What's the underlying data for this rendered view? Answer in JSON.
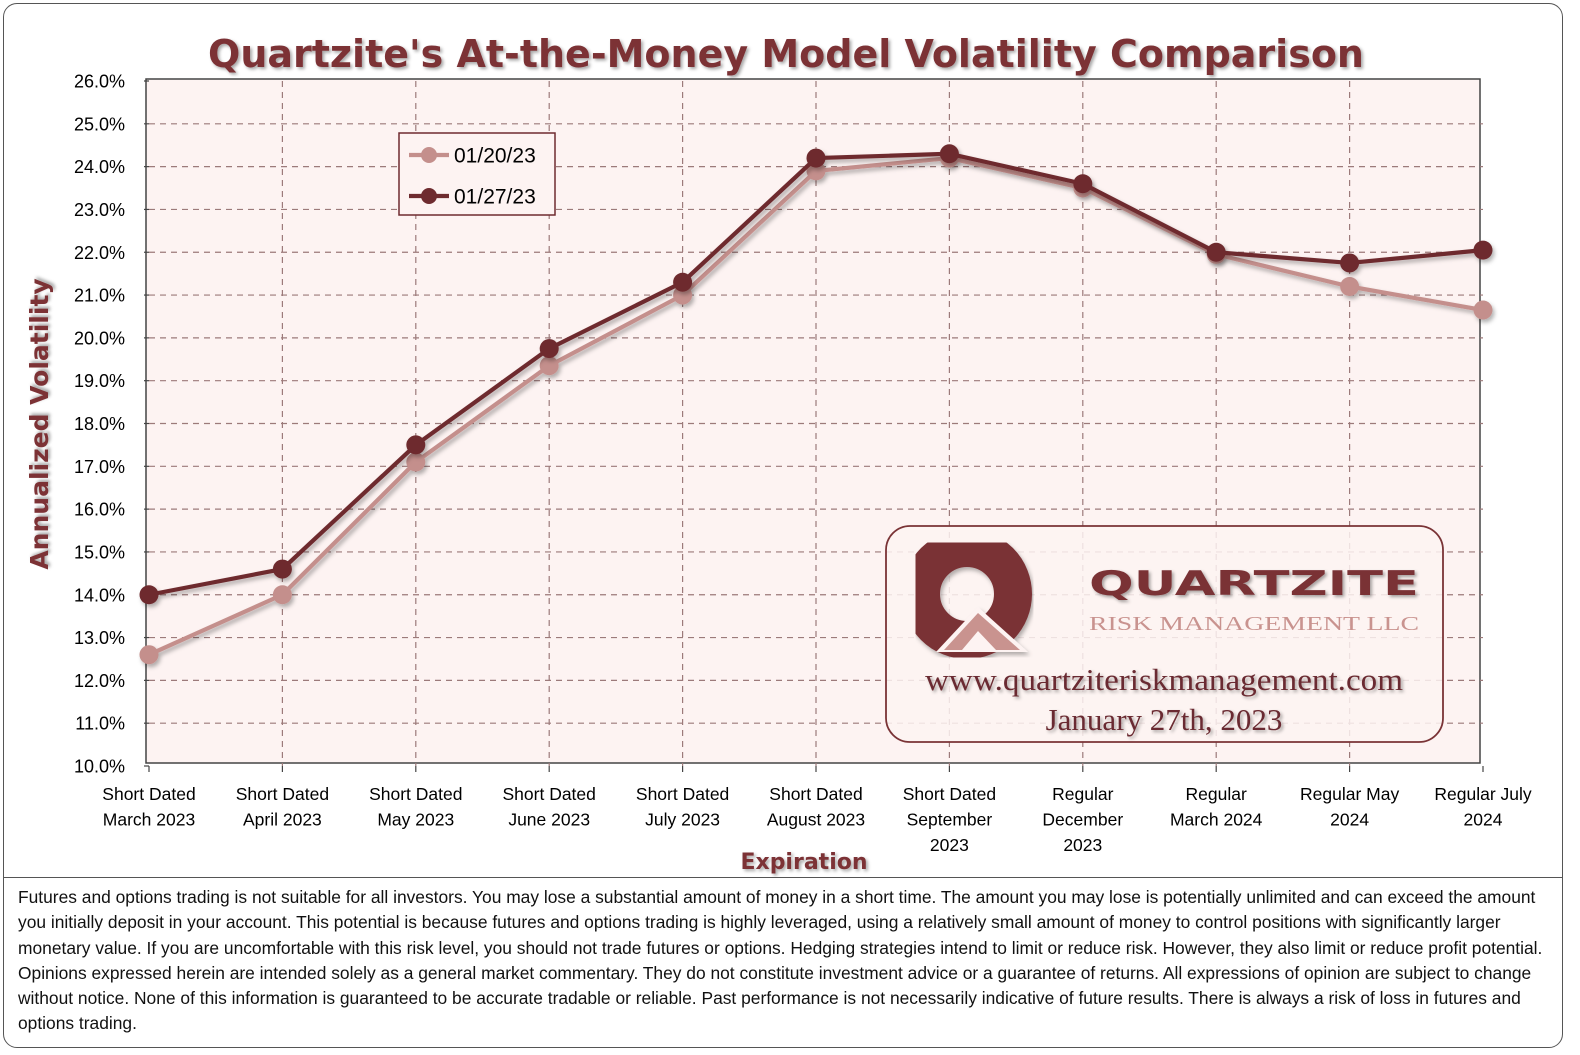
{
  "chart_data": {
    "type": "line",
    "title": "Quartzite's At-the-Money Model Volatility Comparison",
    "xlabel": "Expiration",
    "ylabel": "Annualized Volatility",
    "ylim": [
      10.0,
      26.0
    ],
    "y_tick_step": 1.0,
    "y_tick_format": "percent_1dp",
    "grid": true,
    "legend_position": "top-left",
    "categories": [
      "Short Dated March 2023",
      "Short Dated April 2023",
      "Short Dated May 2023",
      "Short Dated June 2023",
      "Short Dated July 2023",
      "Short Dated August 2023",
      "Short Dated September 2023",
      "Regular December 2023",
      "Regular March 2024",
      "Regular May 2024",
      "Regular July 2024"
    ],
    "category_lines": [
      [
        "Short Dated",
        "March 2023"
      ],
      [
        "Short Dated",
        "April 2023"
      ],
      [
        "Short Dated",
        "May 2023"
      ],
      [
        "Short Dated",
        "June 2023"
      ],
      [
        "Short Dated",
        "July 2023"
      ],
      [
        "Short Dated",
        "August 2023"
      ],
      [
        "Short Dated",
        "September",
        "2023"
      ],
      [
        "Regular",
        "December",
        "2023"
      ],
      [
        "Regular",
        "March 2024"
      ],
      [
        "Regular May",
        "2024"
      ],
      [
        "Regular July",
        "2024"
      ]
    ],
    "series": [
      {
        "name": "01/20/23",
        "color": "#c48f8c",
        "values": [
          12.6,
          14.0,
          17.1,
          19.35,
          21.0,
          23.9,
          24.2,
          23.5,
          21.95,
          21.2,
          20.65
        ]
      },
      {
        "name": "01/27/23",
        "color": "#6e2b2f",
        "values": [
          14.0,
          14.6,
          17.5,
          19.75,
          21.3,
          24.2,
          24.3,
          23.6,
          22.0,
          21.75,
          22.05
        ]
      }
    ]
  },
  "logo": {
    "name": "QUARTZITE",
    "subtitle": "RISK MANAGEMENT LLC",
    "url": "www.quartziteriskmanagement.com",
    "date": "January 27th, 2023"
  },
  "colors": {
    "title": "#7b3035",
    "plot_background": "#fdf3f2",
    "grid": "#9c7a7a",
    "logo_dark": "#7a3336",
    "logo_light": "#c9938f"
  },
  "disclaimer": "Futures and options trading is not suitable for all investors. You may lose a substantial amount of money in a short time. The amount you may lose is potentially unlimited and can exceed the amount you initially deposit in your account. This potential is because futures and options trading is highly leveraged, using a relatively small amount of money to control positions with significantly larger monetary value. If you are uncomfortable with this risk level, you should not trade futures or options. Hedging strategies intend to limit or reduce risk. However, they also limit or reduce profit potential. Opinions expressed herein are intended solely as a general market commentary. They do not constitute investment advice or a guarantee of returns. All expressions of opinion are subject to change without notice. None of this information is guaranteed to be accurate tradable or reliable. Past performance is not necessarily indicative of future results. There is always a risk of loss in futures and options trading."
}
